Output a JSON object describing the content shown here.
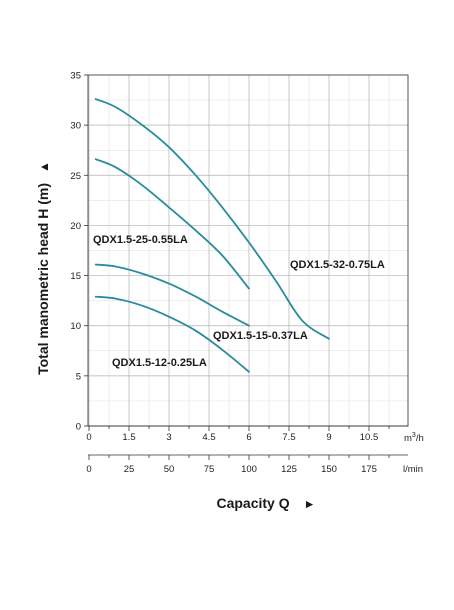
{
  "chart_data": {
    "type": "line",
    "title": "",
    "ylabel": "Total manometric head H (m)",
    "xlabel": "Capacity Q",
    "ylabel_arrow": "▲",
    "xlabel_arrow": "►",
    "ylim": [
      0,
      35
    ],
    "yticks": [
      "0",
      "5",
      "10",
      "15",
      "20",
      "25",
      "30",
      "35"
    ],
    "xlim": [
      0,
      11.5
    ],
    "xticks_primary": [
      "0",
      "1.5",
      "3",
      "4.5",
      "6",
      "7.5",
      "9",
      "10.5"
    ],
    "xunit_primary_base": "m",
    "xunit_primary_sup": "3",
    "xunit_primary_tail": "/h",
    "xticks_secondary": [
      "0",
      "25",
      "50",
      "75",
      "100",
      "125",
      "150",
      "175"
    ],
    "xunit_secondary": "l/min",
    "grid": true,
    "color": "#2a8b9c",
    "series": [
      {
        "name": "QDX1.5-32-0.75LA",
        "x": [
          0.25,
          1,
          2,
          3,
          4,
          5,
          6,
          7,
          8,
          9
        ],
        "y": [
          32.6,
          31.8,
          30.0,
          27.8,
          25.0,
          21.8,
          18.3,
          14.5,
          10.5,
          8.7
        ]
      },
      {
        "name": "QDX1.5-25-0.55LA",
        "x": [
          0.25,
          1,
          2,
          3,
          4,
          5,
          6
        ],
        "y": [
          26.6,
          25.8,
          24.0,
          21.8,
          19.5,
          17.0,
          13.7
        ]
      },
      {
        "name": "QDX1.5-15-0.37LA",
        "x": [
          0.25,
          1,
          2,
          3,
          4,
          5,
          6
        ],
        "y": [
          16.1,
          15.9,
          15.2,
          14.2,
          12.9,
          11.4,
          10.0
        ]
      },
      {
        "name": "QDX1.5-12-0.25LA",
        "x": [
          0.25,
          1,
          2,
          3,
          4,
          5,
          6
        ],
        "y": [
          12.9,
          12.7,
          12.0,
          10.9,
          9.5,
          7.6,
          5.4
        ]
      }
    ]
  }
}
